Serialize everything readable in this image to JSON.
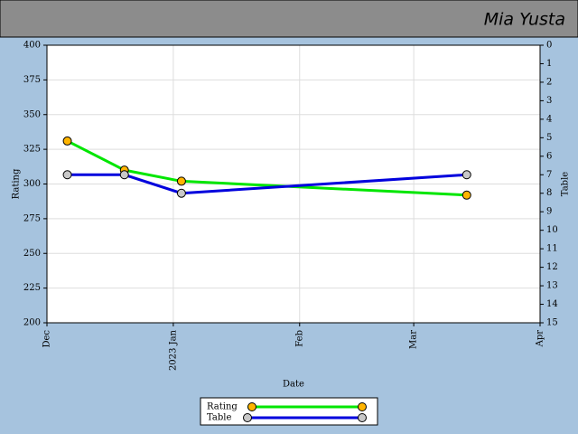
{
  "header": {
    "name": "Mia Yusta"
  },
  "chart_data": {
    "type": "line",
    "xlabel": "Date",
    "ylabel": "Rating",
    "y2label": "Table",
    "xlim": [
      "2022-12-01",
      "2023-04-01"
    ],
    "xticks": [
      {
        "value": "2022-12-01",
        "label": "Dec"
      },
      {
        "value": "2023-01-01",
        "label": "2023 Jan"
      },
      {
        "value": "2023-02-01",
        "label": "Feb"
      },
      {
        "value": "2023-03-01",
        "label": "Mar"
      },
      {
        "value": "2023-04-01",
        "label": "Apr"
      }
    ],
    "ylim": [
      200,
      400
    ],
    "yticks": [
      200,
      225,
      250,
      275,
      300,
      325,
      350,
      375,
      400
    ],
    "y2lim": [
      15,
      0
    ],
    "y2ticks": [
      0,
      1,
      2,
      3,
      4,
      5,
      6,
      7,
      8,
      9,
      10,
      11,
      12,
      13,
      14,
      15
    ],
    "grid": true,
    "x": [
      "2022-12-06",
      "2022-12-20",
      "2023-01-03",
      "2023-03-14"
    ],
    "series": [
      {
        "name": "Rating",
        "color": "#00e600",
        "marker_color": "#ffb400",
        "values": [
          331,
          310,
          302,
          292
        ]
      },
      {
        "name": "Table",
        "color": "#0000dd",
        "marker_color": "#c8c8c8",
        "axis": "y2",
        "values": [
          7,
          7,
          8,
          7
        ]
      }
    ]
  }
}
